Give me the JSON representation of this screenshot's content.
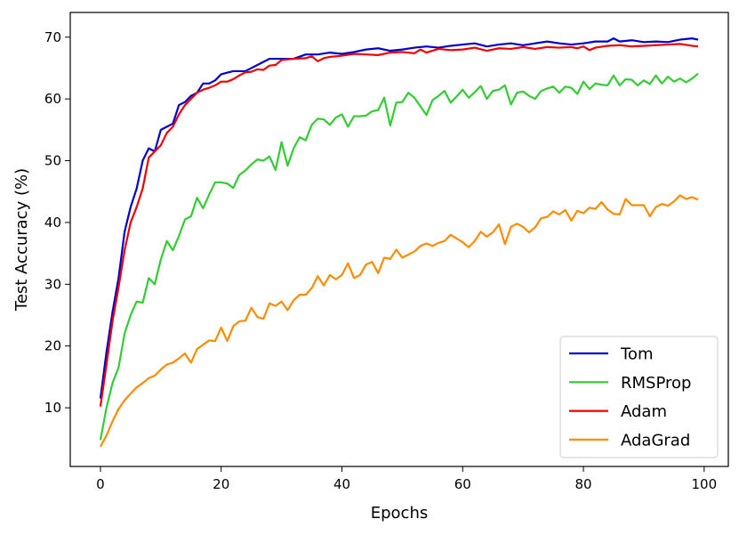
{
  "chart_data": {
    "type": "line",
    "title": "",
    "xlabel": "Epochs",
    "ylabel": "Test Accuracy (%)",
    "xlim": [
      -5,
      104
    ],
    "ylim": [
      0.5,
      74
    ],
    "xticks": [
      0,
      20,
      40,
      60,
      80,
      100
    ],
    "yticks": [
      10,
      20,
      30,
      40,
      50,
      60,
      70
    ],
    "grid": false,
    "legend_position": "lower-right",
    "series": [
      {
        "name": "Tom",
        "color": "#0000cc",
        "x": [
          0,
          1,
          2,
          3,
          4,
          5,
          6,
          7,
          8,
          9,
          10,
          11,
          12,
          13,
          14,
          15,
          16,
          17,
          18,
          19,
          20,
          22,
          24,
          26,
          28,
          30,
          32,
          34,
          36,
          38,
          40,
          42,
          44,
          46,
          48,
          50,
          52,
          54,
          56,
          58,
          60,
          62,
          64,
          66,
          68,
          70,
          72,
          74,
          76,
          78,
          80,
          82,
          84,
          85,
          86,
          88,
          90,
          92,
          94,
          96,
          98,
          99
        ],
        "y": [
          11.5,
          19,
          25.5,
          31,
          38.5,
          42.5,
          45.5,
          50,
          52,
          51.5,
          55,
          55.5,
          56,
          59,
          59.5,
          60.5,
          61,
          62.5,
          62.5,
          63,
          64,
          64.5,
          64.5,
          65.5,
          66.5,
          66.5,
          66.5,
          67.2,
          67.2,
          67.5,
          67.3,
          67.6,
          68,
          68.2,
          67.8,
          68,
          68.3,
          68.5,
          68.3,
          68.6,
          68.8,
          69,
          68.5,
          68.8,
          69,
          68.7,
          69,
          69.3,
          69,
          68.8,
          69,
          69.3,
          69.3,
          69.8,
          69.3,
          69.5,
          69.2,
          69.3,
          69.2,
          69.6,
          69.8,
          69.6
        ]
      },
      {
        "name": "RMSProp",
        "color": "#33cc33",
        "x": [
          0,
          1,
          2,
          3,
          4,
          5,
          6,
          7,
          8,
          9,
          10,
          11,
          12,
          13,
          14,
          15,
          16,
          17,
          18,
          19,
          20,
          21,
          22,
          23,
          24,
          25,
          26,
          27,
          28,
          29,
          30,
          31,
          32,
          33,
          34,
          35,
          36,
          37,
          38,
          39,
          40,
          41,
          42,
          43,
          44,
          45,
          46,
          47,
          48,
          49,
          50,
          51,
          52,
          53,
          54,
          55,
          56,
          57,
          58,
          59,
          60,
          61,
          62,
          63,
          64,
          65,
          66,
          67,
          68,
          69,
          70,
          71,
          72,
          73,
          74,
          75,
          76,
          77,
          78,
          79,
          80,
          81,
          82,
          83,
          84,
          85,
          86,
          87,
          88,
          89,
          90,
          91,
          92,
          93,
          94,
          95,
          96,
          97,
          98,
          99
        ],
        "y": [
          4.8,
          10,
          14,
          16.5,
          22,
          25,
          27.2,
          27,
          31,
          30,
          34,
          37,
          35.5,
          37.8,
          40.5,
          41,
          44,
          42.3,
          44.5,
          46.5,
          46.5,
          46.3,
          45.6,
          47.7,
          48.4,
          49.4,
          50.2,
          50,
          50.7,
          48.5,
          53,
          49.2,
          52,
          53.8,
          53.3,
          55.8,
          56.8,
          56.7,
          55.8,
          57,
          57.5,
          55.5,
          57.2,
          57.2,
          57.3,
          58,
          58.2,
          60.2,
          55.7,
          59.4,
          59.5,
          61,
          60.2,
          58.8,
          57.4,
          59.8,
          60.5,
          61.3,
          59.4,
          60.4,
          61.5,
          60.2,
          61.1,
          62.1,
          60,
          61.3,
          61.5,
          62.2,
          59.1,
          61,
          61.2,
          60.5,
          60,
          61.3,
          61.7,
          62,
          61,
          62,
          61.8,
          60.8,
          62.8,
          61.6,
          62.5,
          62.3,
          62.2,
          63.8,
          62.2,
          63.2,
          63.1,
          62.2,
          63,
          62.4,
          63.8,
          62.5,
          63.6,
          62.8,
          63.3,
          62.7,
          63.3,
          64.1
        ]
      },
      {
        "name": "Adam",
        "color": "#ee0000",
        "x": [
          0,
          1,
          2,
          3,
          4,
          5,
          6,
          7,
          8,
          9,
          10,
          11,
          12,
          13,
          14,
          15,
          16,
          17,
          18,
          19,
          20,
          21,
          22,
          23,
          24,
          25,
          26,
          27,
          28,
          29,
          30,
          32,
          34,
          35,
          36,
          37,
          38,
          40,
          42,
          44,
          46,
          48,
          50,
          52,
          53,
          54,
          56,
          58,
          60,
          62,
          64,
          66,
          68,
          70,
          72,
          74,
          76,
          78,
          79,
          80,
          81,
          82,
          84,
          86,
          88,
          90,
          92,
          94,
          96,
          98,
          99
        ],
        "y": [
          10.2,
          17,
          24,
          29.5,
          35.5,
          40,
          42.5,
          45.5,
          50.5,
          51.5,
          52.5,
          54.5,
          55.5,
          57.5,
          59,
          60,
          61,
          61.5,
          61.8,
          62.2,
          62.8,
          62.8,
          63.2,
          63.8,
          64.3,
          64.4,
          64.8,
          64.7,
          65.4,
          65.5,
          66.3,
          66.5,
          66.6,
          66.9,
          66.1,
          66.6,
          66.8,
          67,
          67.3,
          67.2,
          67.1,
          67.5,
          67.6,
          67.4,
          68,
          67.5,
          68.1,
          67.9,
          68,
          68.3,
          67.8,
          68.2,
          68.1,
          68.4,
          68.1,
          68.4,
          68.3,
          68.4,
          68.2,
          68.5,
          67.9,
          68.3,
          68.6,
          68.7,
          68.5,
          68.6,
          68.7,
          68.8,
          68.9,
          68.6,
          68.5
        ]
      },
      {
        "name": "AdaGrad",
        "color": "#ff8c00",
        "x": [
          0,
          1,
          2,
          3,
          4,
          5,
          6,
          7,
          8,
          9,
          10,
          11,
          12,
          13,
          14,
          15,
          16,
          17,
          18,
          19,
          20,
          21,
          22,
          23,
          24,
          25,
          26,
          27,
          28,
          29,
          30,
          31,
          32,
          33,
          34,
          35,
          36,
          37,
          38,
          39,
          40,
          41,
          42,
          43,
          44,
          45,
          46,
          47,
          48,
          49,
          50,
          51,
          52,
          53,
          54,
          55,
          56,
          57,
          58,
          59,
          60,
          61,
          62,
          63,
          64,
          65,
          66,
          67,
          68,
          69,
          70,
          71,
          72,
          73,
          74,
          75,
          76,
          77,
          78,
          79,
          80,
          81,
          82,
          83,
          84,
          85,
          86,
          87,
          88,
          89,
          90,
          91,
          92,
          93,
          94,
          95,
          96,
          97,
          98,
          99
        ],
        "y": [
          3.7,
          5.5,
          7.8,
          9.8,
          11.2,
          12.3,
          13.3,
          14,
          14.8,
          15.2,
          16.2,
          17,
          17.3,
          18,
          18.8,
          17.3,
          19.5,
          20.2,
          20.9,
          20.8,
          23,
          20.8,
          23.2,
          24,
          24.1,
          26.2,
          24.7,
          24.4,
          26.9,
          26.5,
          27.2,
          25.8,
          27.4,
          28.3,
          28.3,
          29.4,
          31.3,
          29.8,
          31.5,
          30.8,
          31.5,
          33.4,
          31,
          31.5,
          33.2,
          33.6,
          31.8,
          34.3,
          34.1,
          35.6,
          34.3,
          34.8,
          35.3,
          36.2,
          36.6,
          36.2,
          36.7,
          37,
          38,
          37.4,
          36.8,
          36,
          37,
          38.5,
          37.7,
          38.4,
          39.7,
          36.5,
          39.3,
          39.8,
          39.3,
          38.4,
          39.2,
          40.7,
          40.9,
          41.8,
          41.3,
          42,
          40.3,
          41.9,
          41.5,
          42.4,
          42.2,
          43.3,
          42.1,
          41.4,
          41.3,
          43.8,
          42.8,
          42.8,
          42.8,
          41,
          42.5,
          43,
          42.7,
          43.4,
          44.4,
          43.8,
          44.1,
          43.7
        ]
      }
    ]
  }
}
